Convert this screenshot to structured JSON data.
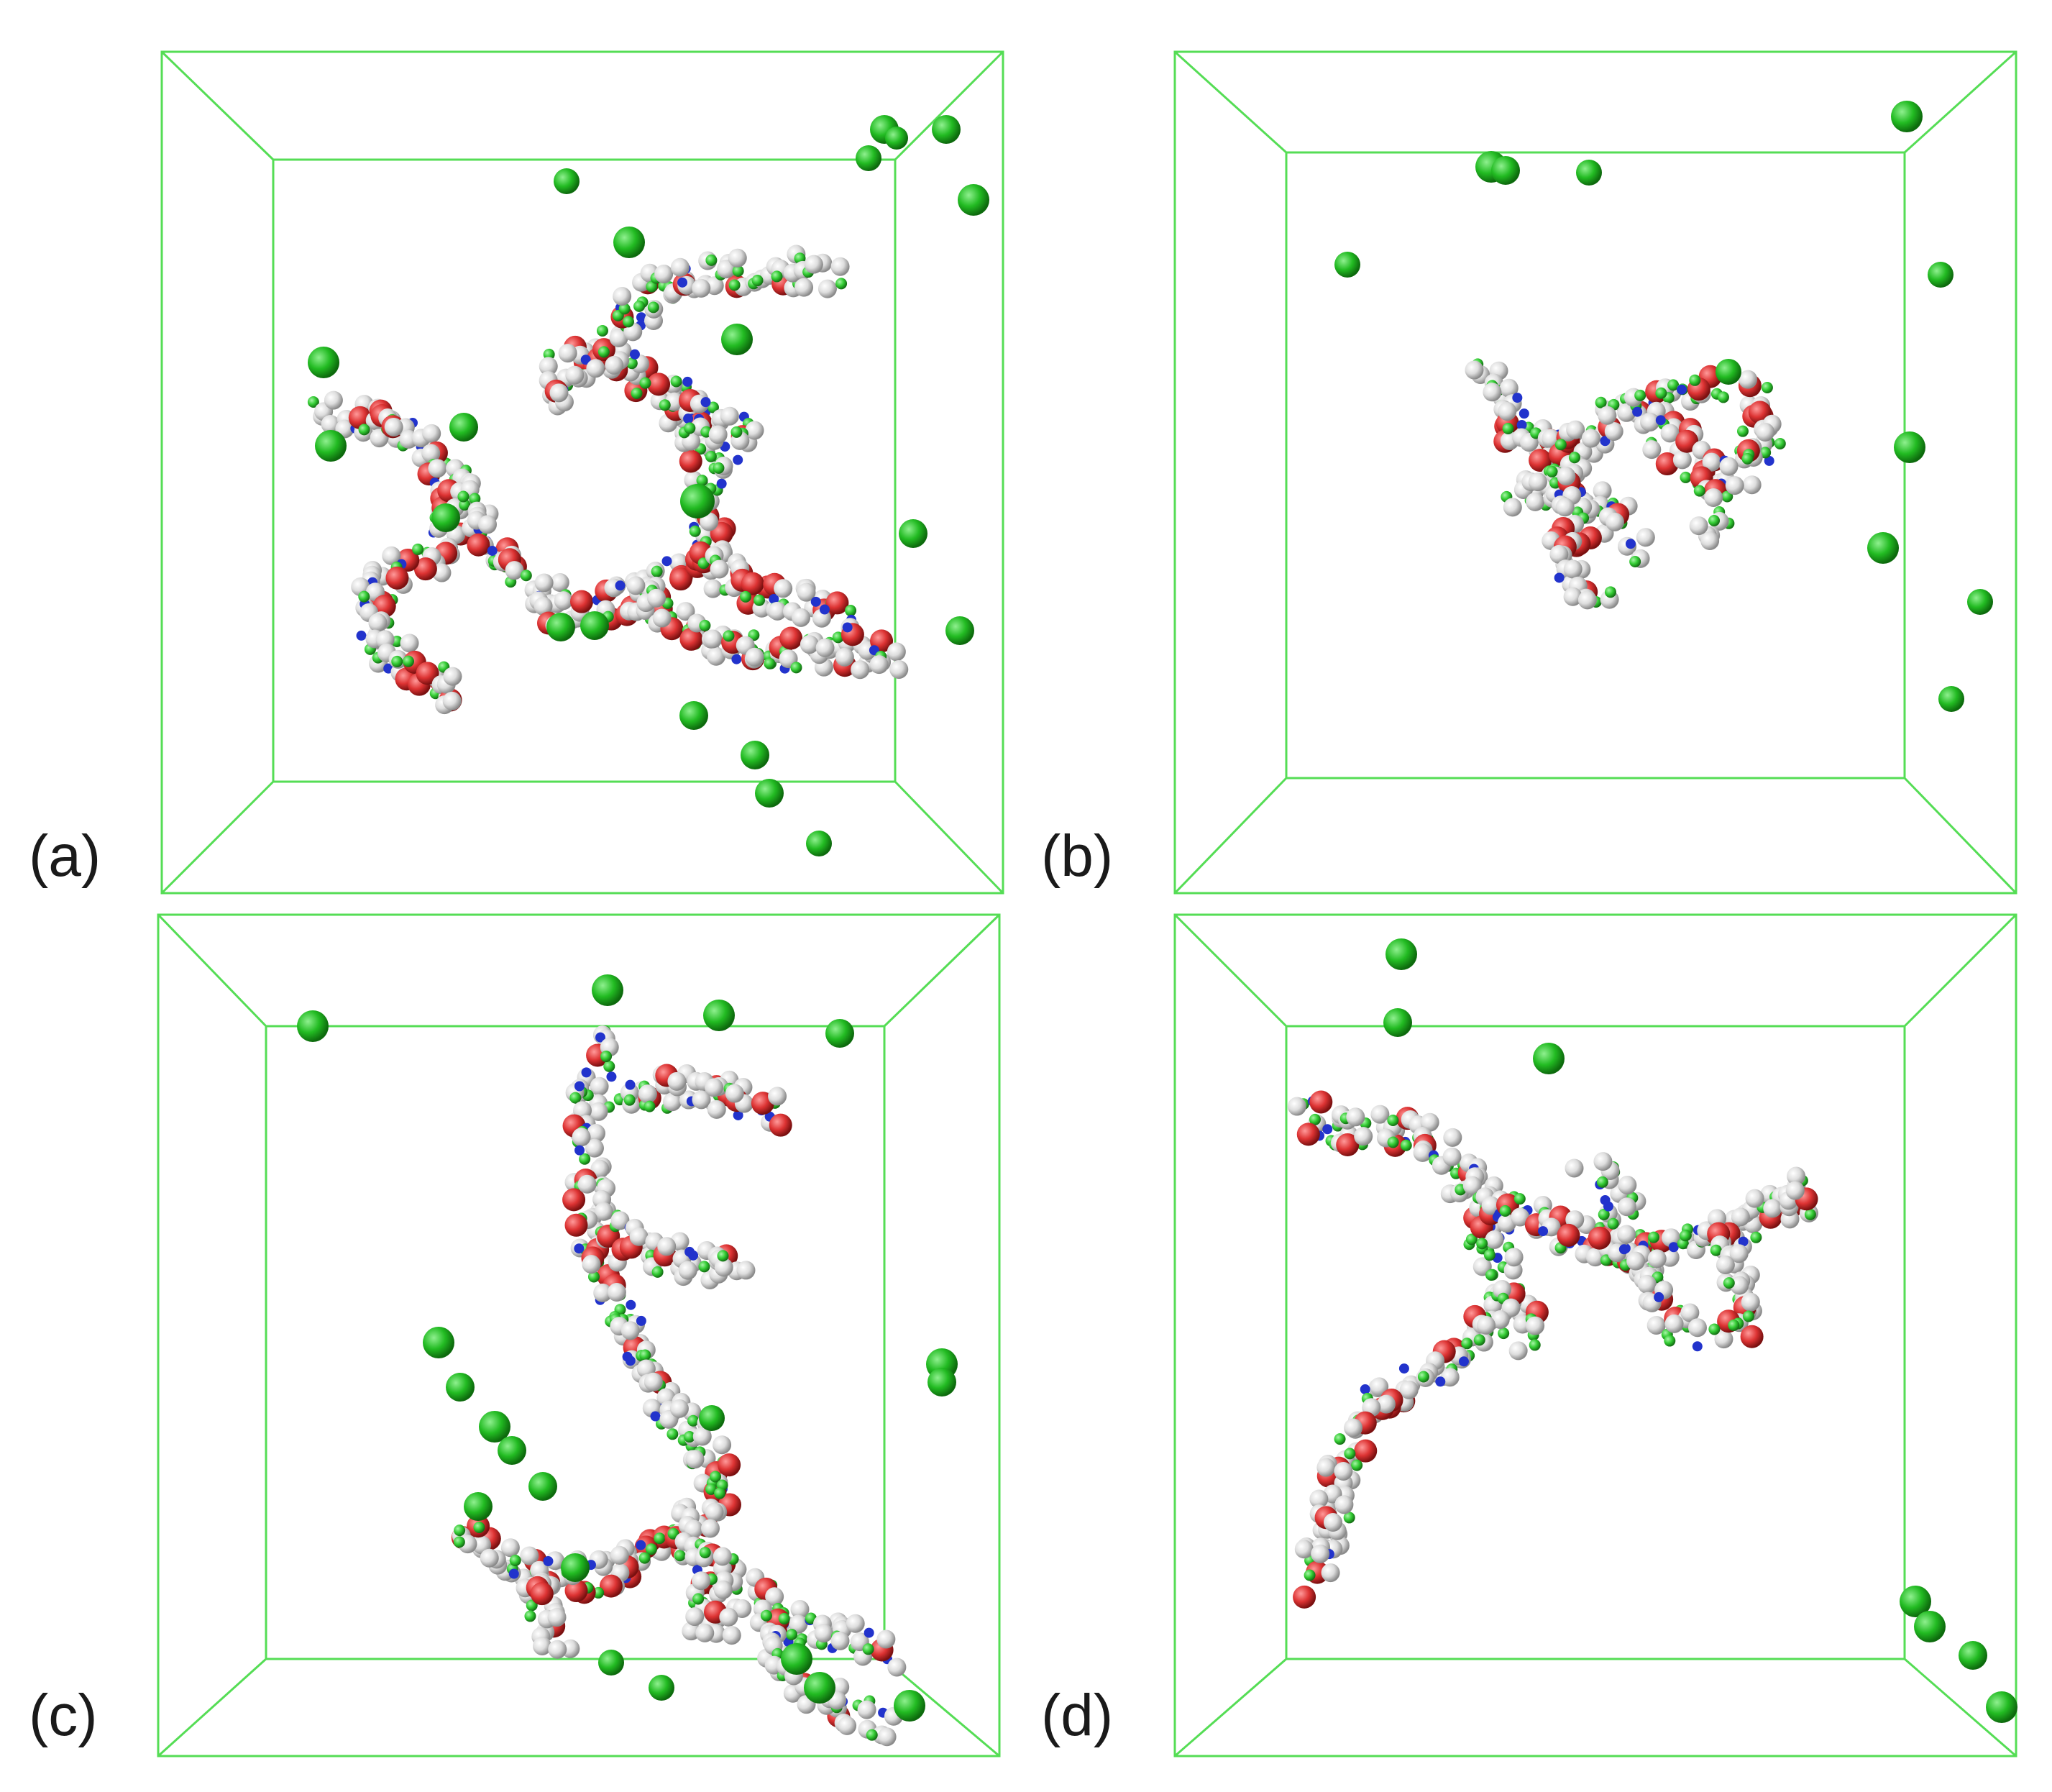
{
  "panels": [
    {
      "id": "a",
      "label": "(a)"
    },
    {
      "id": "b",
      "label": "(b)"
    },
    {
      "id": "c",
      "label": "(c)"
    },
    {
      "id": "d",
      "label": "(d)"
    }
  ],
  "colors": {
    "box_edge": "#55dd55",
    "ion": "#22bb22",
    "hydrogen": "#dddddd",
    "carbon": "#33cc33",
    "nitrogen": "#2233cc",
    "oxygen": "#dd3333"
  },
  "legend": {
    "ion_icon": "green-sphere-icon",
    "box_icon": "wireframe-box-icon"
  }
}
